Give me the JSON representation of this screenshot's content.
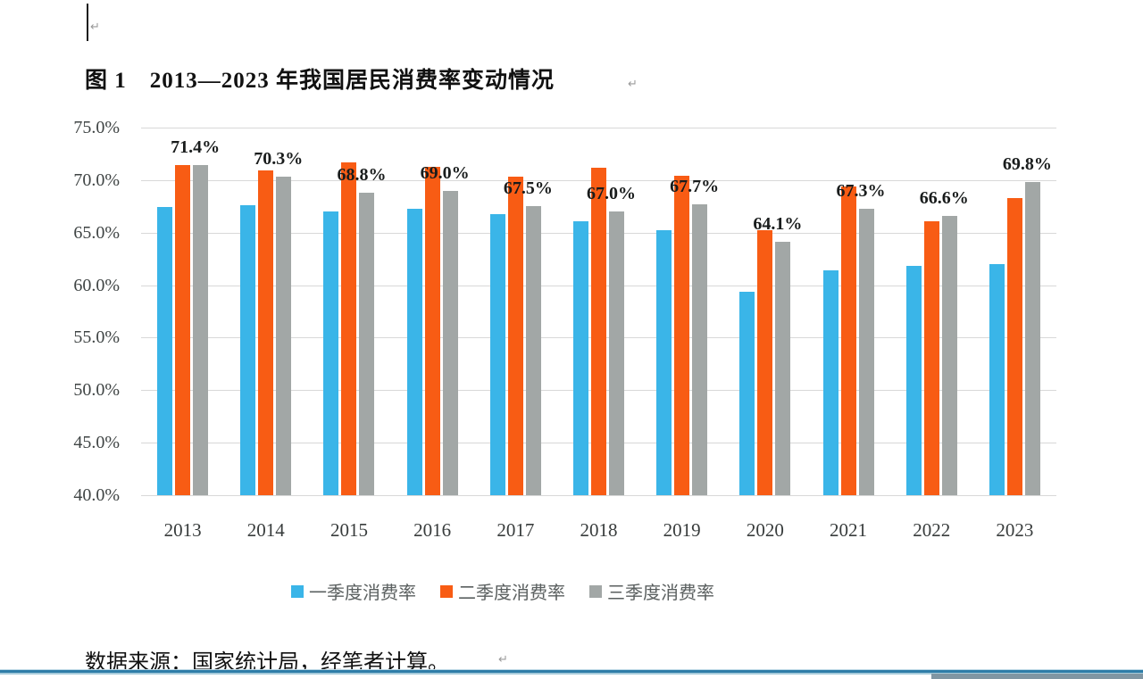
{
  "page": {
    "title": "图 1　2013—2023 年我国居民消费率变动情况",
    "source_note": "数据来源：国家统计局，经笔者计算。",
    "cursor_mark": "↵",
    "title_end_mark": "↵",
    "source_end_mark": "↵"
  },
  "colors": {
    "q1_blue": "#3ab5e8",
    "q2_orange": "#f85c14",
    "q3_gray": "#a2a7a6",
    "gridline": "#d8d8d8",
    "frame_line_blue": "#2e7da8",
    "scrollbar_gray_blue": "#8096a3"
  },
  "chart_data": {
    "type": "bar",
    "title": "图 1　2013—2023 年我国居民消费率变动情况",
    "categories": [
      "2013",
      "2014",
      "2015",
      "2016",
      "2017",
      "2018",
      "2019",
      "2020",
      "2021",
      "2022",
      "2023"
    ],
    "series": [
      {
        "name": "一季度消费率",
        "color": "#3ab5e8",
        "values": [
          67.4,
          67.6,
          67.0,
          67.3,
          66.8,
          66.1,
          65.2,
          59.4,
          61.4,
          61.8,
          62.0
        ]
      },
      {
        "name": "二季度消费率",
        "color": "#f85c14",
        "values": [
          71.4,
          70.9,
          71.7,
          71.3,
          70.3,
          71.2,
          70.4,
          65.2,
          69.4,
          66.1,
          68.3
        ]
      },
      {
        "name": "三季度消费率",
        "color": "#a2a7a6",
        "values": [
          71.4,
          70.3,
          68.8,
          69.0,
          67.5,
          67.0,
          67.7,
          64.1,
          67.3,
          66.6,
          69.8
        ],
        "data_labels": [
          "71.4%",
          "70.3%",
          "68.8%",
          "69.0%",
          "67.5%",
          "67.0%",
          "67.7%",
          "64.1%",
          "67.3%",
          "66.6%",
          "69.8%"
        ]
      }
    ],
    "ylim": [
      40,
      75
    ],
    "y_tick_step": 5,
    "y_ticks": [
      "75.0%",
      "70.0%",
      "65.0%",
      "60.0%",
      "55.0%",
      "50.0%",
      "45.0%",
      "40.0%"
    ],
    "xlabel": "",
    "ylabel": "",
    "grid": true,
    "legend_position": "bottom",
    "source": "数据来源：国家统计局，经笔者计算。"
  }
}
